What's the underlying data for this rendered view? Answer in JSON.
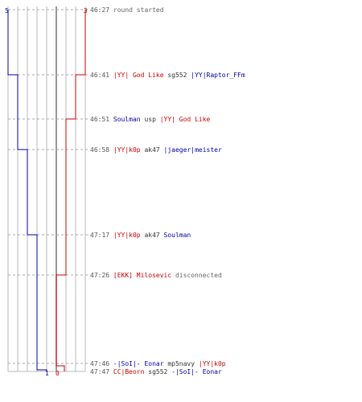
{
  "colors": {
    "team_blue": "#0000aa",
    "team_red": "#cc0000",
    "grid": "#b8b8b8",
    "center_line": "#777777",
    "dash": "#aaaaaa",
    "time_text": "#555555",
    "neutral_text": "#333333",
    "status_text": "#666666"
  },
  "scale": {
    "top_left": "5",
    "top_right": "3",
    "bottom_left": "1",
    "bottom_right": "0"
  },
  "events": [
    {
      "time": "46:27",
      "parts": [
        {
          "text": "round started",
          "kind": "status"
        }
      ]
    },
    {
      "time": "46:41",
      "parts": [
        {
          "text": "|YY| God Like",
          "kind": "red"
        },
        {
          "text": " sg552 ",
          "kind": "neutral"
        },
        {
          "text": "|YY|Raptor_FFm",
          "kind": "blue"
        }
      ]
    },
    {
      "time": "46:51",
      "parts": [
        {
          "text": "Soulman",
          "kind": "blue"
        },
        {
          "text": " usp ",
          "kind": "neutral"
        },
        {
          "text": "|YY| God Like",
          "kind": "red"
        }
      ]
    },
    {
      "time": "46:58",
      "parts": [
        {
          "text": "|YY|k0p",
          "kind": "red"
        },
        {
          "text": " ak47 ",
          "kind": "neutral"
        },
        {
          "text": "|jaeger|meister",
          "kind": "blue"
        }
      ]
    },
    {
      "time": "47:17",
      "parts": [
        {
          "text": "|YY|k0p",
          "kind": "red"
        },
        {
          "text": " ak47 ",
          "kind": "neutral"
        },
        {
          "text": "Soulman",
          "kind": "blue"
        }
      ]
    },
    {
      "time": "47:26",
      "parts": [
        {
          "text": "[EKK] Milosevic",
          "kind": "red"
        },
        {
          "text": " disconnected",
          "kind": "status"
        }
      ]
    },
    {
      "time": "47:46",
      "parts": [
        {
          "text": "-|SoI|- Eonar",
          "kind": "blue"
        },
        {
          "text": " mp5navy ",
          "kind": "neutral"
        },
        {
          "text": "|YY|k0p",
          "kind": "red"
        }
      ]
    },
    {
      "time": "47:47",
      "parts": [
        {
          "text": "CC|Beorn",
          "kind": "red"
        },
        {
          "text": " sg552 ",
          "kind": "neutral"
        },
        {
          "text": "-|SoI|- Eonar",
          "kind": "blue"
        }
      ]
    }
  ]
}
